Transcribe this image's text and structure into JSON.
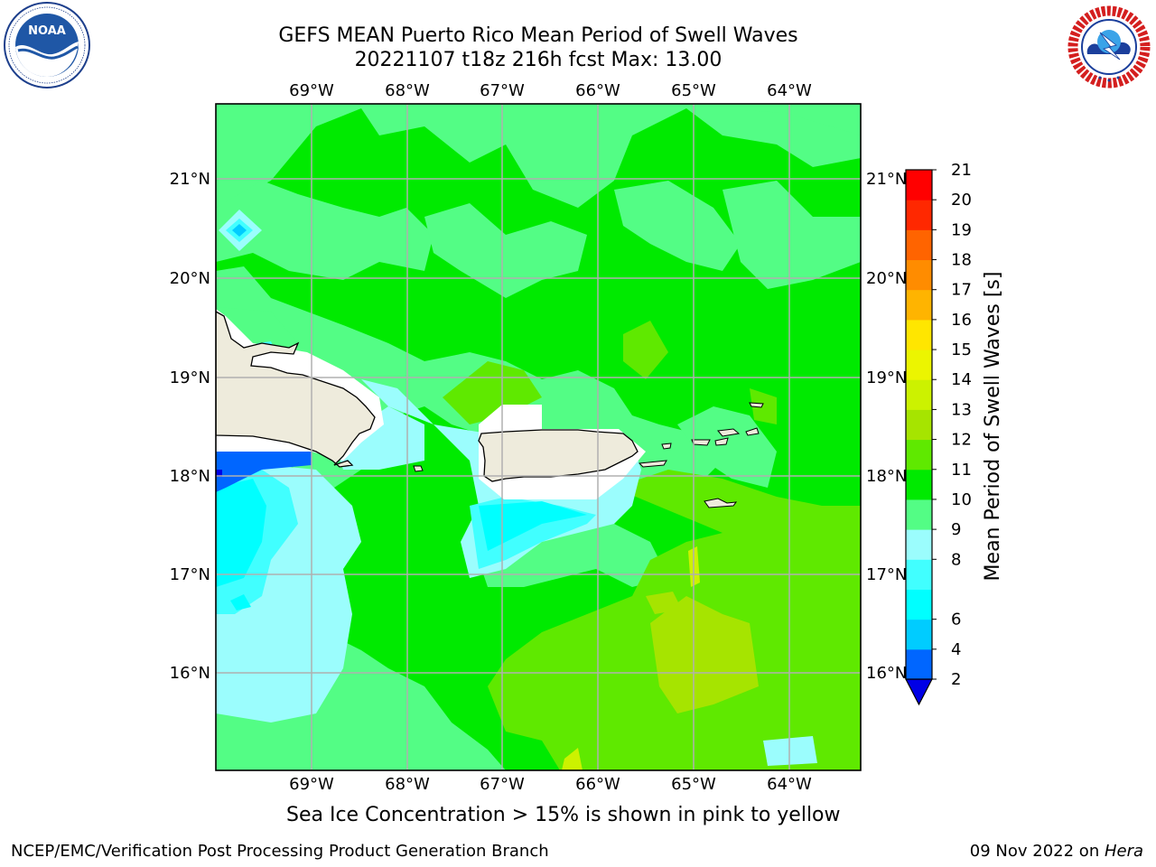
{
  "header": {
    "title_line1": "GEFS MEAN Puerto Rico Mean Period of Swell Waves",
    "title_line2": "20221107 t18z 216h fcst   Max: 13.00"
  },
  "logos": {
    "noaa_text": "NOAA",
    "noaa_ring_text": "NATIONAL OCEANIC AND ATMOSPHERIC ADMINISTRATION · U.S. DEPARTMENT OF COMMERCE",
    "nws_ring_text": "NATIONAL WEATHER SERVICE"
  },
  "map": {
    "lon_labels": [
      "69°W",
      "68°W",
      "67°W",
      "66°W",
      "65°W",
      "64°W"
    ],
    "lat_labels": [
      "21°N",
      "20°N",
      "19°N",
      "18°N",
      "17°N",
      "16°N"
    ],
    "land_color": "#eeebdc",
    "no_data_color": "#ffffff"
  },
  "colorbar": {
    "label": "Mean Period of Swell Waves [s]",
    "levels": [
      "2",
      "4",
      "6",
      "7",
      "8",
      "9",
      "10",
      "11",
      "12",
      "13",
      "14",
      "15",
      "16",
      "17",
      "18",
      "19",
      "20",
      "21"
    ],
    "tick_labels": [
      "2",
      "4",
      "6",
      "8",
      "9",
      "10",
      "11",
      "12",
      "13",
      "14",
      "15",
      "16",
      "17",
      "18",
      "19",
      "20",
      "21"
    ],
    "colors": [
      "#0000e6",
      "#0066ff",
      "#00ccff",
      "#00ffff",
      "#41ffff",
      "#9bfdfd",
      "#53fd85",
      "#00ea00",
      "#5fe900",
      "#a6e400",
      "#ccf200",
      "#ecf500",
      "#ffe600",
      "#ffb400",
      "#ff8c00",
      "#ff6400",
      "#ff2800",
      "#ff0000"
    ]
  },
  "notes": {
    "sea_ice": "Sea Ice Concentration > 15% is shown in pink to yellow"
  },
  "footer": {
    "left": "NCEP/EMC/Verification Post Processing Product Generation Branch",
    "right_date": "09 Nov 2022 on ",
    "right_host": "Hera"
  }
}
